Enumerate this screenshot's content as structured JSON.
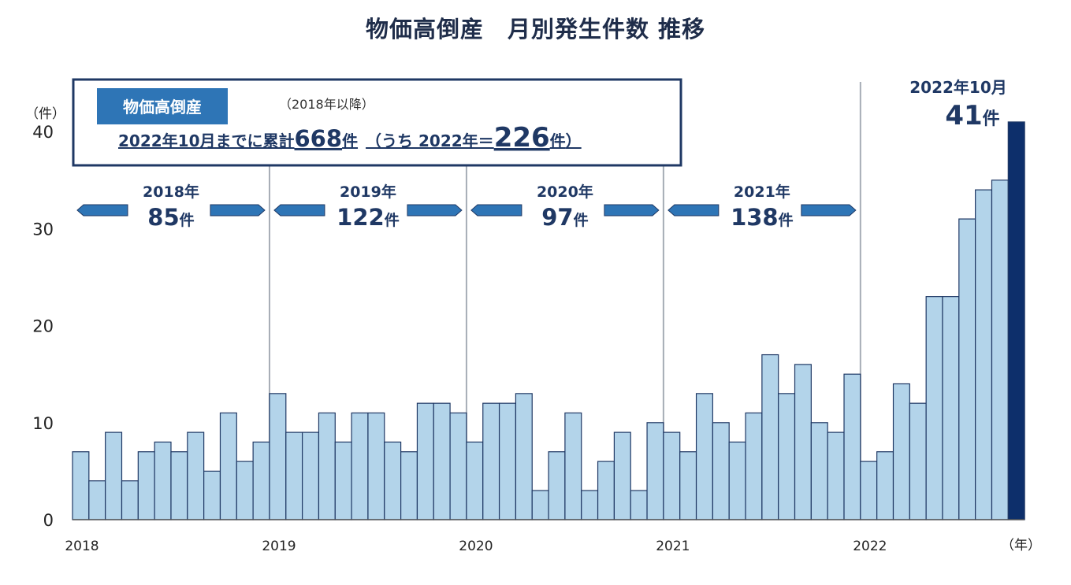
{
  "title": "物価高倒産　月別発生件数 推移",
  "y_unit": "（件）",
  "x_unit": "（年）",
  "summary_box": {
    "badge": "物価高倒産",
    "since_note": "（2018年以降）",
    "text_prefix": "2022年10月までに累計",
    "total": "668",
    "unit_1": "件",
    "text_mid": "（うち 2022年＝",
    "year_total": "226",
    "unit_2": "件",
    "text_suffix": "）"
  },
  "annual_totals": [
    {
      "year_label": "2018年",
      "count": "85",
      "unit": "件"
    },
    {
      "year_label": "2019年",
      "count": "122",
      "unit": "件"
    },
    {
      "year_label": "2020年",
      "count": "97",
      "unit": "件"
    },
    {
      "year_label": "2021年",
      "count": "138",
      "unit": "件"
    }
  ],
  "highlight": {
    "label": "2022年10月",
    "count": "41",
    "unit": "件"
  },
  "colors": {
    "bar": "#b3d4ea",
    "bar_highlight": "#0d2f6b",
    "bar_edge": "#1f3864",
    "arrow": "#2e75b6",
    "text_dark": "#1f3864"
  },
  "chart_data": {
    "type": "bar",
    "title": "物価高倒産　月別発生件数 推移",
    "xlabel": "（年）",
    "ylabel": "（件）",
    "ylim": [
      0,
      43
    ],
    "yticks": [
      0,
      10,
      20,
      30,
      40
    ],
    "x_tick_labels": [
      "2018",
      "2019",
      "2020",
      "2021",
      "2022"
    ],
    "grid": false,
    "legend": "none",
    "categories": [
      "2018-01",
      "2018-02",
      "2018-03",
      "2018-04",
      "2018-05",
      "2018-06",
      "2018-07",
      "2018-08",
      "2018-09",
      "2018-10",
      "2018-11",
      "2018-12",
      "2019-01",
      "2019-02",
      "2019-03",
      "2019-04",
      "2019-05",
      "2019-06",
      "2019-07",
      "2019-08",
      "2019-09",
      "2019-10",
      "2019-11",
      "2019-12",
      "2020-01",
      "2020-02",
      "2020-03",
      "2020-04",
      "2020-05",
      "2020-06",
      "2020-07",
      "2020-08",
      "2020-09",
      "2020-10",
      "2020-11",
      "2020-12",
      "2021-01",
      "2021-02",
      "2021-03",
      "2021-04",
      "2021-05",
      "2021-06",
      "2021-07",
      "2021-08",
      "2021-09",
      "2021-10",
      "2021-11",
      "2021-12",
      "2022-01",
      "2022-02",
      "2022-03",
      "2022-04",
      "2022-05",
      "2022-06",
      "2022-07",
      "2022-08",
      "2022-09",
      "2022-10"
    ],
    "values": [
      7,
      4,
      9,
      4,
      7,
      8,
      7,
      9,
      5,
      11,
      6,
      8,
      13,
      9,
      9,
      11,
      8,
      11,
      11,
      8,
      7,
      12,
      12,
      11,
      8,
      12,
      12,
      13,
      3,
      7,
      11,
      3,
      6,
      9,
      3,
      10,
      9,
      7,
      13,
      10,
      8,
      11,
      17,
      13,
      16,
      10,
      9,
      15,
      6,
      7,
      14,
      12,
      23,
      23,
      31,
      34,
      35,
      41
    ],
    "highlight_index": 57
  }
}
